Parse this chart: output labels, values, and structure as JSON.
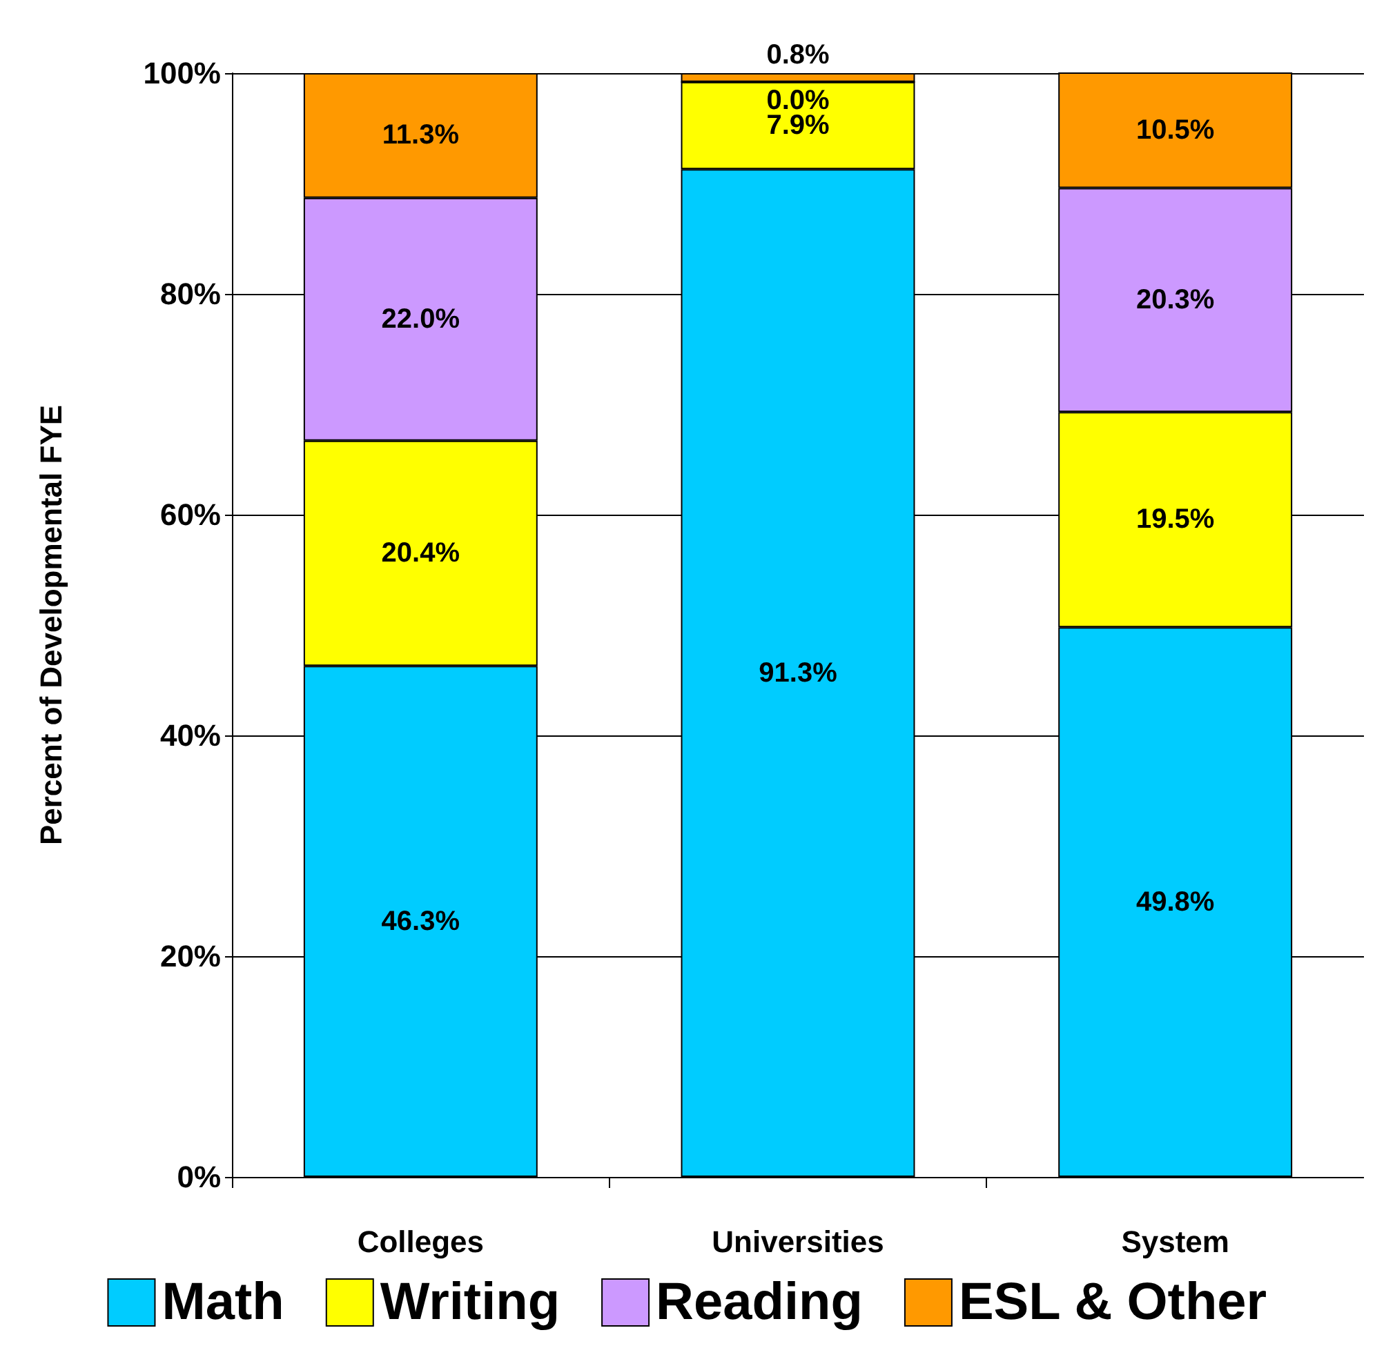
{
  "chart_data": {
    "type": "bar",
    "stacked": true,
    "ylabel": "Percent of Developmental FYE",
    "categories": [
      "Colleges",
      "Universities",
      "System"
    ],
    "series": [
      {
        "name": "Math",
        "color": "#00ccff",
        "values": [
          46.3,
          91.3,
          49.8
        ],
        "value_labels": [
          "46.3%",
          "91.3%",
          "49.8%"
        ]
      },
      {
        "name": "Writing",
        "color": "#ffff00",
        "values": [
          20.4,
          7.9,
          19.5
        ],
        "value_labels": [
          "20.4%",
          "7.9%",
          "19.5%"
        ]
      },
      {
        "name": "Reading",
        "color": "#cc99ff",
        "values": [
          22.0,
          0.0,
          20.3
        ],
        "value_labels": [
          "22.0%",
          "0.0%",
          "20.3%"
        ]
      },
      {
        "name": "ESL & Other",
        "color": "#ff9900",
        "values": [
          11.3,
          0.8,
          10.5
        ],
        "value_labels": [
          "11.3%",
          "0.8%",
          "10.5%"
        ]
      }
    ],
    "ylim": [
      0,
      100
    ],
    "yticks": [
      {
        "value": 0,
        "label": "0%"
      },
      {
        "value": 20,
        "label": "20%"
      },
      {
        "value": 40,
        "label": "40%"
      },
      {
        "value": 60,
        "label": "60%"
      },
      {
        "value": 80,
        "label": "80%"
      },
      {
        "value": 100,
        "label": "100%"
      }
    ],
    "grid": "y",
    "legend": "bottom"
  }
}
